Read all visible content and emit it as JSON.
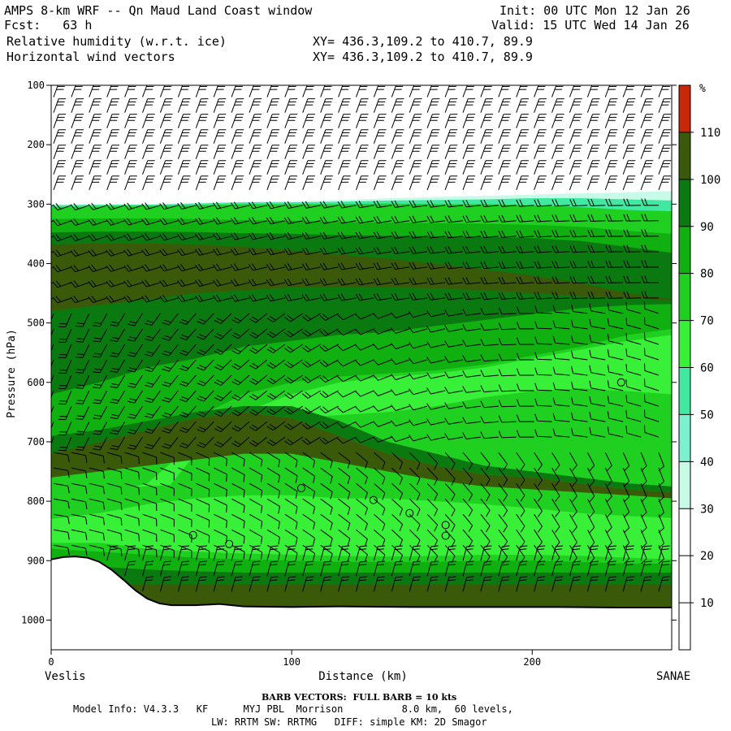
{
  "header": {
    "title": "AMPS 8-km WRF -- Qn Maud Land Coast window",
    "fcst": "Fcst:   63 h",
    "init": "Init: 00 UTC Mon 12 Jan 26",
    "valid": "Valid: 15 UTC Wed 14 Jan 26",
    "field1": "Relative humidity (w.r.t. ice)",
    "field2": "Horizontal wind vectors",
    "xy1": "XY= 436.3,109.2 to 410.7, 89.9",
    "xy2": "XY= 436.3,109.2 to 410.7, 89.9"
  },
  "chart_data": {
    "type": "heatmap",
    "title": "Relative humidity (w.r.t. ice) cross-section",
    "xlabel": "Distance (km)",
    "ylabel": "Pressure (hPa)",
    "xlim": [
      0,
      258
    ],
    "ylim": [
      1050,
      100
    ],
    "y_scale": "linear, inverted",
    "x_ticks": [
      0,
      100,
      200
    ],
    "y_ticks": [
      100,
      200,
      300,
      400,
      500,
      600,
      700,
      800,
      900,
      1000
    ],
    "x_endpoints": {
      "left": "Veslis",
      "right": "SANAE"
    },
    "colorbar": {
      "unit": "%",
      "levels": [
        10,
        20,
        30,
        40,
        50,
        60,
        70,
        80,
        90,
        100,
        110
      ],
      "colors": [
        "#ffffff",
        "#ffffff",
        "#ffffff",
        "#c8fae8",
        "#7df0d0",
        "#40e8a0",
        "#38f038",
        "#20d020",
        "#10b010",
        "#0a7a10",
        "#3a5a0a",
        "#c82808"
      ]
    },
    "rh_bands_upper_pressure_hPa": {
      "x_km": [
        0,
        20,
        40,
        60,
        80,
        100,
        120,
        140,
        160,
        180,
        200,
        220,
        240,
        258
      ],
      "top_30pct": [
        300,
        300,
        300,
        298,
        296,
        295,
        293,
        290,
        288,
        286,
        284,
        282,
        280,
        278
      ],
      "top_70pct": [
        305,
        304,
        303,
        302,
        300,
        300,
        300,
        299,
        300,
        300,
        302,
        305,
        310,
        312
      ],
      "top_90pct": [
        348,
        346,
        346,
        347,
        349,
        350,
        352,
        353,
        354,
        355,
        357,
        362,
        372,
        382
      ]
    },
    "terrain_pressure_hPa": {
      "x_km": [
        0,
        5,
        10,
        15,
        20,
        25,
        30,
        35,
        40,
        45,
        50,
        60,
        70,
        80,
        100,
        120,
        150,
        180,
        210,
        240,
        258
      ],
      "p": [
        898,
        894,
        893,
        895,
        902,
        915,
        932,
        950,
        964,
        972,
        975,
        975,
        973,
        977,
        978,
        977,
        978,
        978,
        978,
        979,
        979
      ]
    },
    "calm_points": [
      {
        "x_km": 59,
        "p_hPa": 857
      },
      {
        "x_km": 74,
        "p_hPa": 872
      },
      {
        "x_km": 104,
        "p_hPa": 778
      },
      {
        "x_km": 134,
        "p_hPa": 798
      },
      {
        "x_km": 149,
        "p_hPa": 820
      },
      {
        "x_km": 164,
        "p_hPa": 840
      },
      {
        "x_km": 164,
        "p_hPa": 858
      },
      {
        "x_km": 237,
        "p_hPa": 600
      }
    ],
    "barb_note": "BARB VECTORS:  FULL BARB = 10 kts"
  },
  "labels": {
    "ylabel": "Pressure (hPa)",
    "xlabel": "Distance (km)",
    "left_end": "Veslis",
    "right_end": "SANAE",
    "cb_unit": "%"
  },
  "footer": {
    "barb": "BARB VECTORS:  FULL BARB = 10 kts",
    "model": "Model Info: V4.3.3   KF      MYJ PBL  Morrison          8.0 km,  60 levels,",
    "physics": "LW: RRTM SW: RRTMG   DIFF: simple KM: 2D Smagor"
  }
}
